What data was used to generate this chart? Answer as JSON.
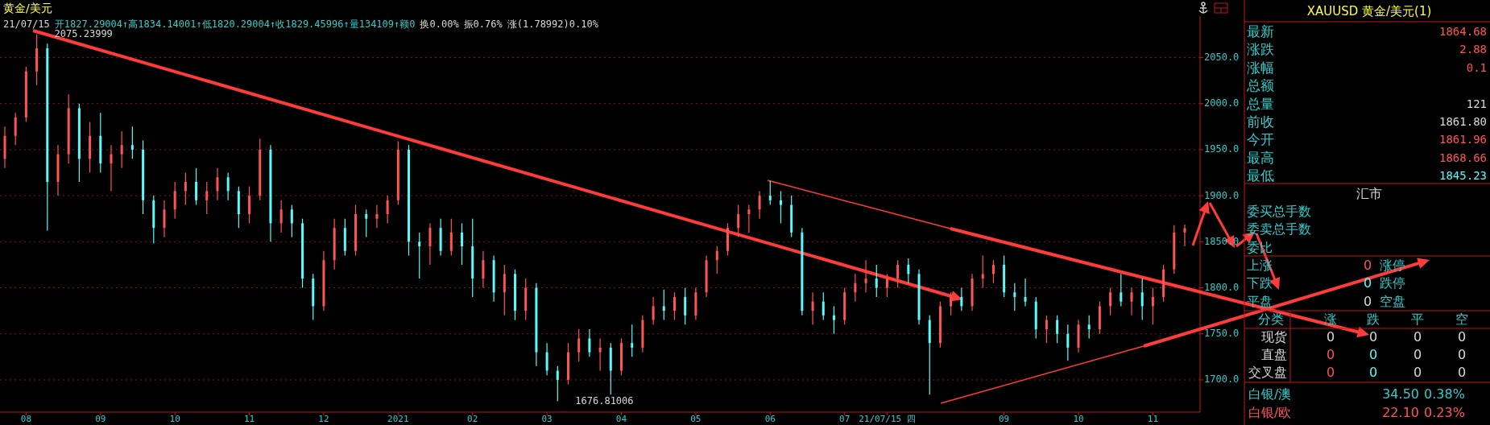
{
  "chart_data": [
    {
      "type": "candlestick",
      "title": "黄金/美元",
      "subtitle": "21/07/15 开1827.29004↑高1834.14001↑低1820.29004↑收1829.45996↑量134109↑额0 换0.00% 振0.76% 涨(1.78992)0.10%",
      "annotations": [
        "2075.23999",
        "1676.81006"
      ],
      "categories": [
        null,
        null,
        "08",
        null,
        null,
        null,
        null,
        null,
        null,
        "09",
        null,
        null,
        null,
        null,
        null,
        null,
        "10",
        null,
        null,
        null,
        null,
        null,
        null,
        "11",
        null,
        null,
        null,
        null,
        null,
        null,
        "12",
        null,
        null,
        null,
        null,
        null,
        null,
        "2021",
        null,
        null,
        null,
        null,
        null,
        null,
        "02",
        null,
        null,
        null,
        null,
        null,
        null,
        "03",
        null,
        null,
        null,
        null,
        null,
        null,
        "04",
        null,
        null,
        null,
        null,
        null,
        null,
        "05",
        null,
        null,
        null,
        null,
        null,
        null,
        "06",
        null,
        null,
        null,
        null,
        null,
        null,
        "07",
        null,
        null,
        null,
        "21/07/15 四",
        null,
        null,
        null,
        null,
        null,
        null,
        null,
        null,
        null,
        null,
        "09",
        null,
        null,
        null,
        null,
        null,
        null,
        "10",
        null,
        null,
        null,
        null,
        null,
        null,
        "11",
        null,
        null,
        null
      ],
      "ohlc": [
        [
          1940,
          1975,
          1930,
          1965
        ],
        [
          1965,
          1990,
          1955,
          1985
        ],
        [
          1985,
          2040,
          1980,
          2035
        ],
        [
          2035,
          2075.24,
          2020,
          2060
        ],
        [
          2060,
          2065,
          1862,
          1915
        ],
        [
          1915,
          1955,
          1900,
          1945
        ],
        [
          1945,
          2010,
          1935,
          1995
        ],
        [
          1995,
          2000,
          1915,
          1940
        ],
        [
          1940,
          1980,
          1925,
          1965
        ],
        [
          1965,
          1990,
          1925,
          1935
        ],
        [
          1935,
          1955,
          1905,
          1945
        ],
        [
          1945,
          1970,
          1930,
          1955
        ],
        [
          1955,
          1975,
          1940,
          1950
        ],
        [
          1950,
          1960,
          1880,
          1895
        ],
        [
          1895,
          1900,
          1848,
          1865
        ],
        [
          1865,
          1895,
          1855,
          1885
        ],
        [
          1885,
          1915,
          1875,
          1905
        ],
        [
          1905,
          1925,
          1890,
          1915
        ],
        [
          1915,
          1930,
          1890,
          1895
        ],
        [
          1895,
          1915,
          1880,
          1905
        ],
        [
          1905,
          1930,
          1895,
          1920
        ],
        [
          1920,
          1925,
          1895,
          1905
        ],
        [
          1905,
          1910,
          1865,
          1880
        ],
        [
          1880,
          1910,
          1870,
          1900
        ],
        [
          1900,
          1962,
          1895,
          1950
        ],
        [
          1950,
          1955,
          1850,
          1870
        ],
        [
          1870,
          1895,
          1860,
          1885
        ],
        [
          1885,
          1890,
          1855,
          1870
        ],
        [
          1870,
          1875,
          1800,
          1810
        ],
        [
          1810,
          1815,
          1765,
          1780
        ],
        [
          1780,
          1840,
          1775,
          1830
        ],
        [
          1830,
          1875,
          1820,
          1865
        ],
        [
          1865,
          1875,
          1835,
          1840
        ],
        [
          1840,
          1890,
          1835,
          1880
        ],
        [
          1880,
          1885,
          1855,
          1875
        ],
        [
          1875,
          1890,
          1865,
          1880
        ],
        [
          1880,
          1900,
          1870,
          1895
        ],
        [
          1895,
          1959,
          1890,
          1950
        ],
        [
          1950,
          1955,
          1835,
          1850
        ],
        [
          1850,
          1860,
          1810,
          1845
        ],
        [
          1845,
          1870,
          1825,
          1865
        ],
        [
          1865,
          1875,
          1835,
          1840
        ],
        [
          1840,
          1875,
          1835,
          1860
        ],
        [
          1860,
          1870,
          1825,
          1845
        ],
        [
          1845,
          1875,
          1790,
          1810
        ],
        [
          1810,
          1840,
          1800,
          1830
        ],
        [
          1830,
          1835,
          1785,
          1795
        ],
        [
          1795,
          1825,
          1770,
          1815
        ],
        [
          1815,
          1820,
          1765,
          1775
        ],
        [
          1775,
          1810,
          1765,
          1800
        ],
        [
          1800,
          1805,
          1715,
          1730
        ],
        [
          1730,
          1740,
          1705,
          1710
        ],
        [
          1710,
          1715,
          1676.81,
          1700
        ],
        [
          1700,
          1740,
          1695,
          1730
        ],
        [
          1730,
          1755,
          1720,
          1745
        ],
        [
          1745,
          1755,
          1725,
          1730
        ],
        [
          1730,
          1745,
          1710,
          1735
        ],
        [
          1735,
          1740,
          1684,
          1710
        ],
        [
          1710,
          1745,
          1705,
          1740
        ],
        [
          1740,
          1760,
          1725,
          1735
        ],
        [
          1735,
          1770,
          1730,
          1765
        ],
        [
          1765,
          1790,
          1760,
          1780
        ],
        [
          1780,
          1798,
          1765,
          1775
        ],
        [
          1775,
          1795,
          1765,
          1790
        ],
        [
          1790,
          1800,
          1760,
          1770
        ],
        [
          1770,
          1800,
          1765,
          1795
        ],
        [
          1795,
          1835,
          1790,
          1830
        ],
        [
          1830,
          1845,
          1815,
          1840
        ],
        [
          1840,
          1870,
          1835,
          1865
        ],
        [
          1865,
          1890,
          1855,
          1880
        ],
        [
          1880,
          1890,
          1860,
          1885
        ],
        [
          1885,
          1905,
          1875,
          1900
        ],
        [
          1900,
          1916,
          1890,
          1895
        ],
        [
          1895,
          1905,
          1870,
          1890
        ],
        [
          1890,
          1900,
          1855,
          1860
        ],
        [
          1860,
          1865,
          1770,
          1775
        ],
        [
          1775,
          1795,
          1760,
          1785
        ],
        [
          1785,
          1795,
          1765,
          1770
        ],
        [
          1770,
          1780,
          1750,
          1765
        ],
        [
          1765,
          1800,
          1760,
          1795
        ],
        [
          1795,
          1815,
          1785,
          1805
        ],
        [
          1805,
          1830,
          1795,
          1810
        ],
        [
          1810,
          1825,
          1790,
          1800
        ],
        [
          1800,
          1815,
          1790,
          1810
        ],
        [
          1810,
          1830,
          1800,
          1825
        ],
        [
          1825,
          1832,
          1805,
          1815
        ],
        [
          1815,
          1820,
          1760,
          1765
        ],
        [
          1765,
          1770,
          1684,
          1740
        ],
        [
          1740,
          1785,
          1735,
          1780
        ],
        [
          1780,
          1795,
          1770,
          1790
        ],
        [
          1790,
          1800,
          1775,
          1780
        ],
        [
          1780,
          1815,
          1775,
          1810
        ],
        [
          1810,
          1835,
          1800,
          1815
        ],
        [
          1815,
          1830,
          1805,
          1825
        ],
        [
          1825,
          1835,
          1790,
          1795
        ],
        [
          1795,
          1805,
          1775,
          1790
        ],
        [
          1790,
          1810,
          1780,
          1785
        ],
        [
          1785,
          1790,
          1745,
          1755
        ],
        [
          1755,
          1770,
          1740,
          1765
        ],
        [
          1765,
          1770,
          1740,
          1750
        ],
        [
          1750,
          1760,
          1721,
          1735
        ],
        [
          1735,
          1765,
          1730,
          1760
        ],
        [
          1760,
          1770,
          1745,
          1755
        ],
        [
          1755,
          1785,
          1750,
          1780
        ],
        [
          1780,
          1800,
          1770,
          1795
        ],
        [
          1795,
          1815,
          1780,
          1785
        ],
        [
          1785,
          1800,
          1770,
          1795
        ],
        [
          1795,
          1810,
          1765,
          1780
        ],
        [
          1780,
          1800,
          1760,
          1790
        ],
        [
          1790,
          1825,
          1785,
          1820
        ],
        [
          1820,
          1868,
          1815,
          1860
        ],
        [
          1860,
          1868.66,
          1845,
          1864.68
        ]
      ],
      "ylim": [
        1665,
        2095
      ],
      "yticks": [
        {
          "value": 1700,
          "label": "1700.0"
        },
        {
          "value": 1750,
          "label": "1750.0"
        },
        {
          "value": 1800,
          "label": "1800.0"
        },
        {
          "value": 1850,
          "label": "1850.0"
        },
        {
          "value": 1900,
          "label": "1900.0"
        },
        {
          "value": 1950,
          "label": "1950.0"
        },
        {
          "value": 2000,
          "label": "2000.0"
        },
        {
          "value": 2050,
          "label": "2050.0"
        }
      ],
      "grid": "y"
    },
    {
      "type": "other",
      "title": "XAUUSD 黄金/美元(1)",
      "categories": [
        "最新",
        "涨跌",
        "涨幅",
        "总额",
        "总量",
        "前收",
        "今开",
        "最高",
        "最低"
      ],
      "value_labels": [
        "1864.68",
        "2.88",
        "0.1",
        null,
        "121",
        "1861.80",
        "1861.96",
        "1868.66",
        "1845.23"
      ],
      "annotations": [
        "汇市",
        "委买总手数",
        "委卖总手数",
        "委比",
        "上涨",
        "0",
        "涨停",
        "下跌",
        "0",
        "跌停",
        "平盘",
        "0",
        "空盘",
        "分类",
        "涨",
        "跌",
        "平",
        "空",
        "现货",
        "0",
        "0",
        "0",
        "0",
        "直盘",
        "0",
        "0",
        "0",
        "0",
        "交叉盘",
        "0",
        "0",
        "0",
        "0",
        "白银/澳",
        "34.50",
        "0.38%",
        "白银/欧",
        "22.10",
        "0.23%"
      ]
    }
  ]
}
